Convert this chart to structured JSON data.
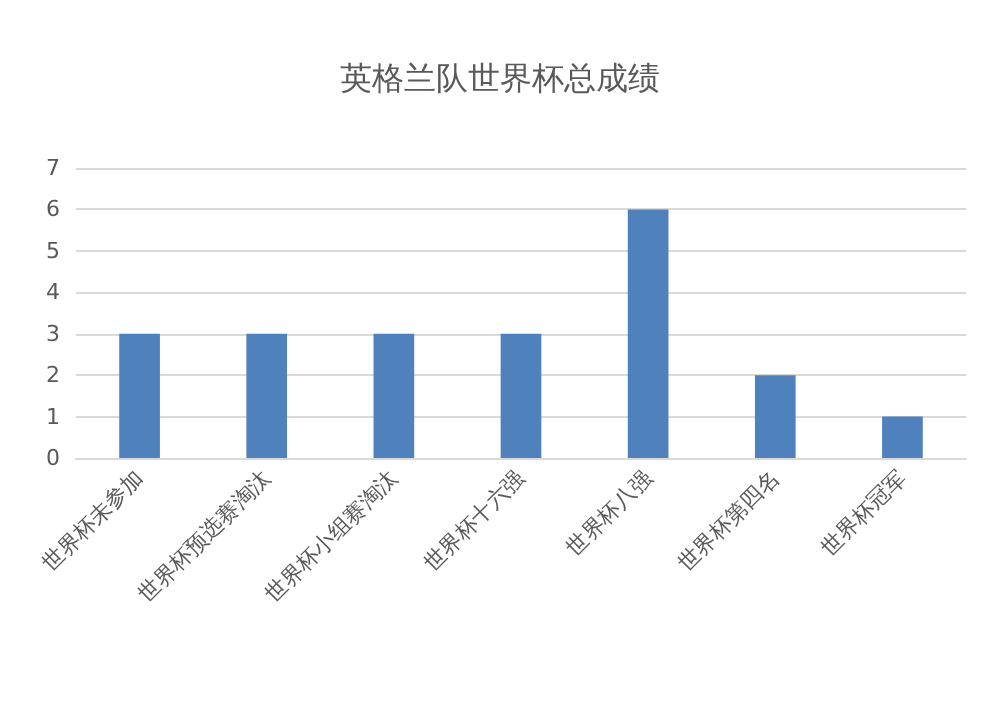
{
  "chart_data": {
    "type": "bar",
    "title": "英格兰队世界杯总成绩",
    "categories": [
      "世界杯未参加",
      "世界杯预选赛淘汰",
      "世界杯小组赛淘汰",
      "世界杯十六强",
      "世界杯八强",
      "世界杯第四名",
      "世界杯冠军"
    ],
    "values": [
      3,
      3,
      3,
      3,
      6,
      2,
      1
    ],
    "color": "#4f81bd",
    "ylim": [
      0,
      7
    ],
    "yticks": [
      0,
      1,
      2,
      3,
      4,
      5,
      6,
      7
    ],
    "grid": "y"
  }
}
